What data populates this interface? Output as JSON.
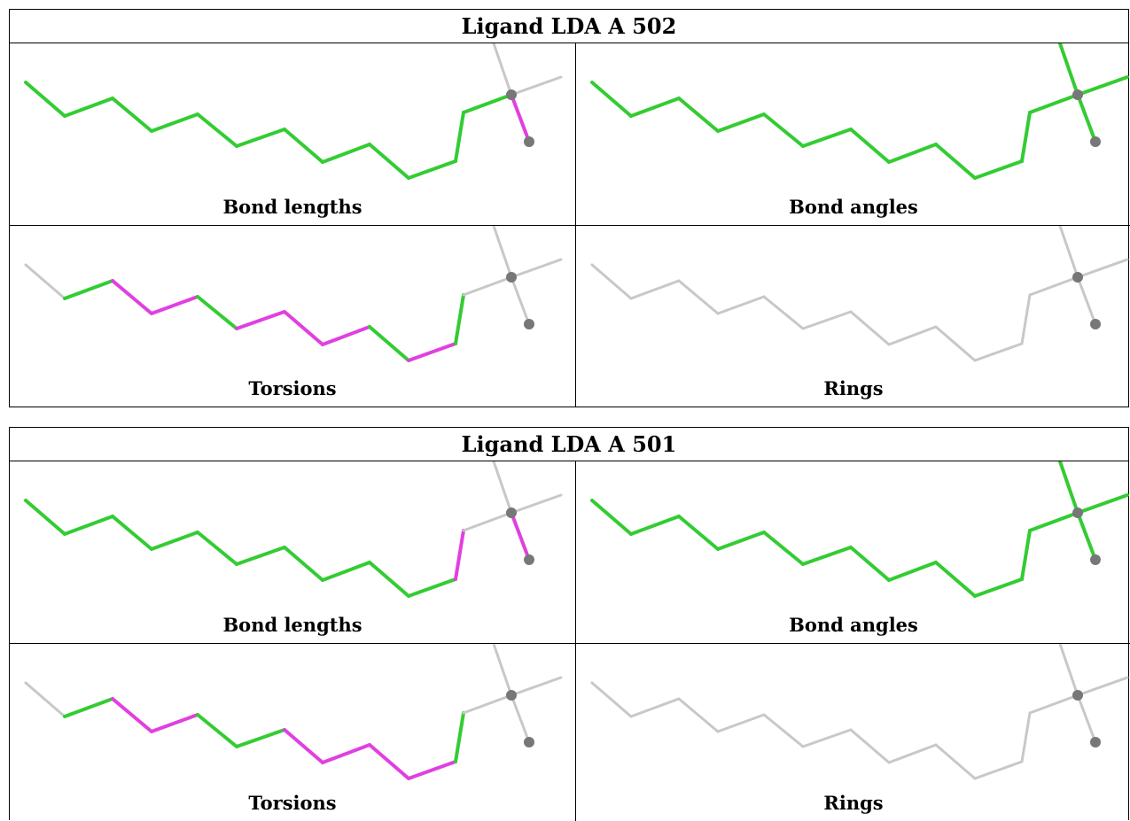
{
  "colors": {
    "ok": "#33cc33",
    "outlier": "#e040e0",
    "none": "#c8c8c8",
    "atom": "#777777"
  },
  "ligands": [
    {
      "title": "Ligand LDA A 502",
      "panels": [
        {
          "caption": "Bond lengths",
          "bonds": [
            "ok",
            "ok",
            "ok",
            "ok",
            "ok",
            "ok",
            "ok",
            "ok",
            "ok",
            "ok",
            "ok",
            "ok",
            "outlier",
            "none",
            "none"
          ]
        },
        {
          "caption": "Bond angles",
          "bonds": [
            "ok",
            "ok",
            "ok",
            "ok",
            "ok",
            "ok",
            "ok",
            "ok",
            "ok",
            "ok",
            "ok",
            "ok",
            "ok",
            "ok",
            "ok"
          ]
        },
        {
          "caption": "Torsions",
          "bonds": [
            "none",
            "ok",
            "outlier",
            "outlier",
            "ok",
            "outlier",
            "outlier",
            "outlier",
            "ok",
            "outlier",
            "ok",
            "none",
            "none",
            "none",
            "none"
          ]
        },
        {
          "caption": "Rings",
          "bonds": [
            "none",
            "none",
            "none",
            "none",
            "none",
            "none",
            "none",
            "none",
            "none",
            "none",
            "none",
            "none",
            "none",
            "none",
            "none"
          ]
        }
      ]
    },
    {
      "title": "Ligand LDA A 501",
      "panels": [
        {
          "caption": "Bond lengths",
          "bonds": [
            "ok",
            "ok",
            "ok",
            "ok",
            "ok",
            "ok",
            "ok",
            "ok",
            "ok",
            "ok",
            "outlier",
            "none",
            "outlier",
            "none",
            "none"
          ]
        },
        {
          "caption": "Bond angles",
          "bonds": [
            "ok",
            "ok",
            "ok",
            "ok",
            "ok",
            "ok",
            "ok",
            "ok",
            "ok",
            "ok",
            "ok",
            "ok",
            "ok",
            "ok",
            "ok"
          ]
        },
        {
          "caption": "Torsions",
          "bonds": [
            "none",
            "ok",
            "outlier",
            "outlier",
            "ok",
            "ok",
            "outlier",
            "outlier",
            "outlier",
            "outlier",
            "ok",
            "none",
            "none",
            "none",
            "none"
          ]
        },
        {
          "caption": "Rings",
          "bonds": [
            "none",
            "none",
            "none",
            "none",
            "none",
            "none",
            "none",
            "none",
            "none",
            "none",
            "none",
            "none",
            "none",
            "none",
            "none"
          ]
        }
      ]
    }
  ]
}
